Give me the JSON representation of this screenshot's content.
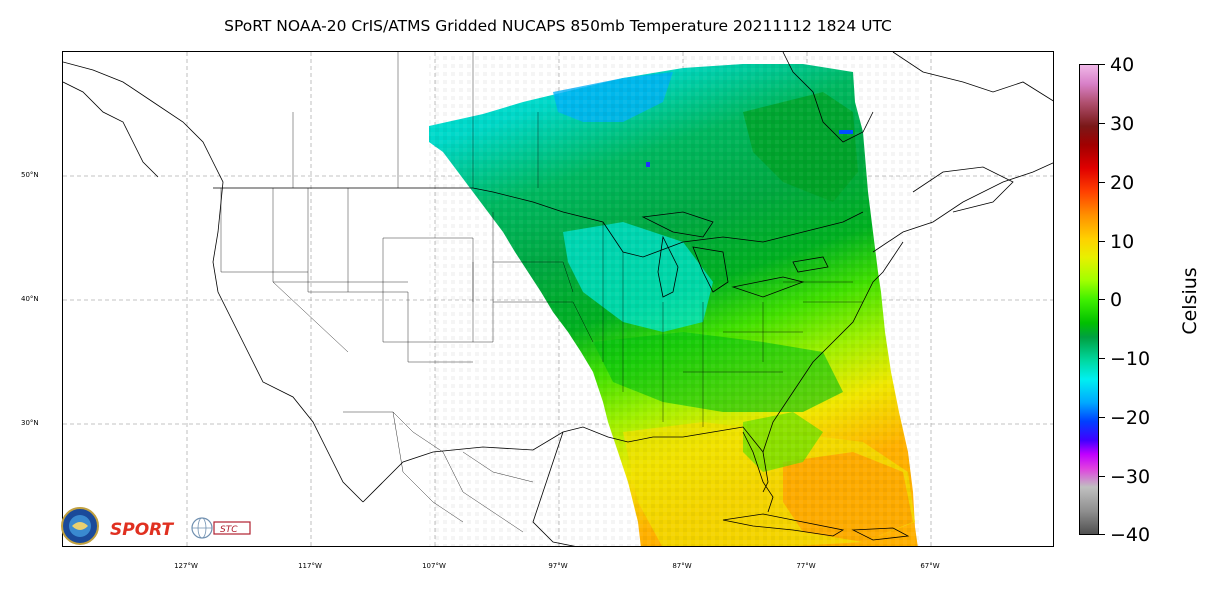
{
  "title": "SPoRT NOAA-20 CrIS/ATMS Gridded NUCAPS 850mb Temperature 20211112 1824 UTC",
  "lat_labels": [
    "50°N",
    "40°N",
    "30°N"
  ],
  "lon_labels": [
    "127°W",
    "117°W",
    "107°W",
    "97°W",
    "87°W",
    "77°W",
    "67°W"
  ],
  "colorbar": {
    "title": "Celsius",
    "ticks": [
      "40",
      "30",
      "20",
      "10",
      "0",
      "−10",
      "−20",
      "−30",
      "−40"
    ]
  },
  "logos": {
    "sport": "SPORT",
    "stc": "STC"
  },
  "colors": {
    "cold": "#00a8ff",
    "cool": "#00f0f0",
    "mild": "#00c000",
    "warm": "#a0ff00",
    "hot": "#ffd000",
    "hotter": "#ff9000"
  }
}
